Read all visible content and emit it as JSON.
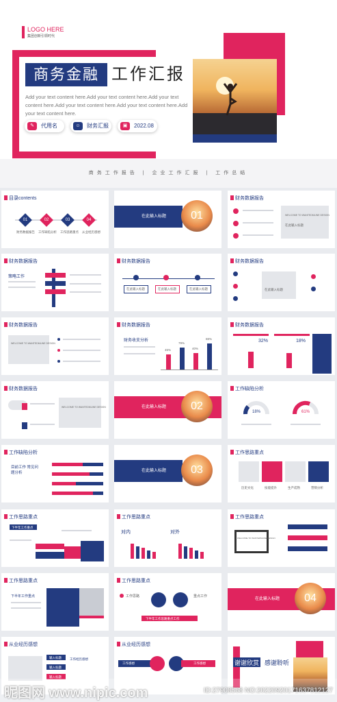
{
  "cover": {
    "logo": "LOGO HERE",
    "logo_sub": "集团创新引领时代",
    "title_box": "商务金融",
    "title_rest": "工作汇报",
    "body": "Add your text content here.Add your text content here.Add your text content here.Add your text content here.Add your text content here.Add your text content here.",
    "pill_name": "代用名",
    "pill_topic": "财务汇报",
    "pill_date": "2022.08",
    "icon_colors": {
      "accent": "#e0245e",
      "primary": "#233b80"
    }
  },
  "strip": "商务工作报告 | 企业工作汇报 | 工作总结",
  "slides": [
    {
      "heading": "目录contents",
      "items": [
        "01",
        "02",
        "03",
        "04"
      ],
      "labels": [
        "财务数据报告",
        "工作缺陷分析",
        "工作思路重点",
        "从业经历感想"
      ]
    },
    {
      "section": "在此输入标题",
      "num": "01"
    },
    {
      "heading": "财务数据报告",
      "card": "WELCOME TO WANTEDMLINE DESIGN",
      "card_btn": "在此输入标题"
    },
    {
      "heading": "财务数据报告",
      "sub": "策略工作"
    },
    {
      "heading": "财务数据报告",
      "boxes": [
        "在此输入标题",
        "在此输入标题",
        "在此输入标题"
      ]
    },
    {
      "heading": "财务数据报告",
      "card": "在此输入标题"
    },
    {
      "heading": "财务数据报告",
      "card": "WELCOME TO WANTEDMLINE DESIGN"
    },
    {
      "heading": "财务数据报告",
      "sub": "财务收支分析",
      "pcts": [
        "45%",
        "79%",
        "40%",
        "88%"
      ]
    },
    {
      "heading": "财务数据报告",
      "pcts": [
        "32%",
        "18%"
      ]
    },
    {
      "heading": "财务数据报告",
      "card": "WELCOME TO WANTEDMLINE DESIGN"
    },
    {
      "section": "在此输入标题",
      "num": "02"
    },
    {
      "heading": "工作缺陷分析",
      "pcts": [
        "18%",
        "61%"
      ]
    },
    {
      "heading": "工作缺陷分析",
      "sub": "目前工作 常见问题分析"
    },
    {
      "section": "在此输入标题",
      "num": "03"
    },
    {
      "heading": "工作思路重点",
      "labels": [
        "历史文化",
        "技能提升",
        "生产成熟",
        "营销分析"
      ]
    },
    {
      "heading": "工作思路重点",
      "sub": "下半年工作重点"
    },
    {
      "heading": "工作思路重点",
      "sub_a": "对内",
      "sub_b": "对外"
    },
    {
      "heading": "工作思路重点",
      "card": "WELCOME TO WANTEDMLINE DESIGN"
    },
    {
      "heading": "工作思路重点",
      "sub": "下半年工作重点"
    },
    {
      "heading": "工作思路重点",
      "sub": "工作思路",
      "sub2": "重点工作",
      "banner": "下半年工作思路重点工作"
    },
    {
      "section": "在此输入标题",
      "num": "04"
    },
    {
      "heading": "从业经历感想",
      "sub": "工作经历感想",
      "items": [
        "输入标题",
        "输入标题",
        "输入标题"
      ]
    },
    {
      "heading": "从业经历感想",
      "tags": [
        "工作感想",
        "工作感想"
      ]
    },
    {
      "thanks_a": "谢谢欣赏",
      "thanks_b": "感谢聆听"
    }
  ],
  "watermark": {
    "left": "昵图网 www.nipic.com",
    "right": "ID:27908568 NO:20220920171637812127"
  }
}
